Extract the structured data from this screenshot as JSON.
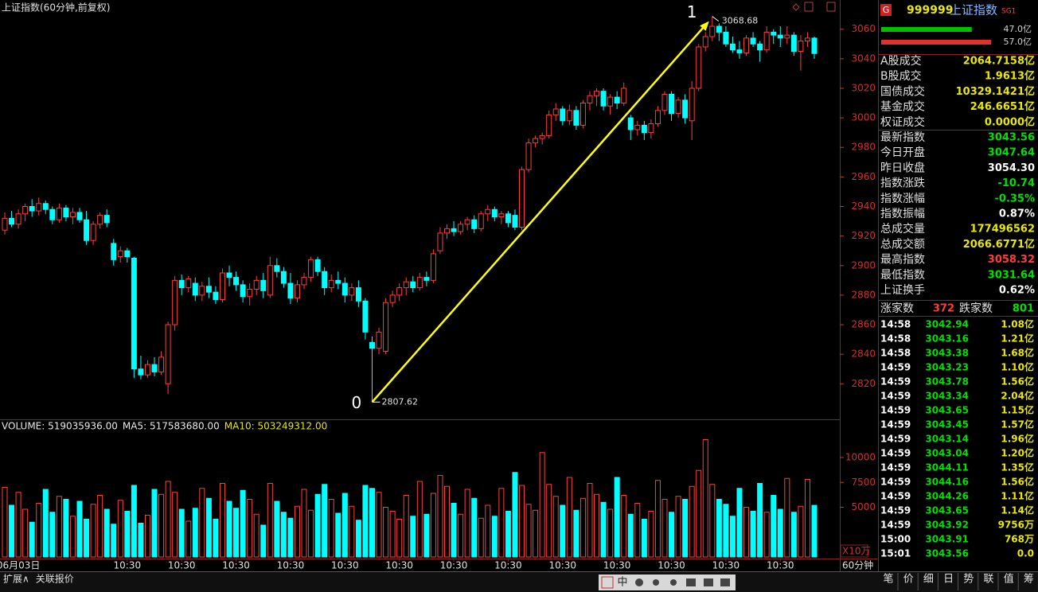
{
  "header": {
    "title": "上证指数(60分钟,前复权)"
  },
  "chart_data": [
    {
      "type": "candlestick",
      "up_color": "#ff3c3c",
      "down_color": "#00ffff",
      "ylim": [
        2797,
        3069
      ],
      "yticks": [
        2820,
        2840,
        2860,
        2880,
        2900,
        2920,
        2940,
        2960,
        2980,
        3000,
        3020,
        3040,
        3060
      ],
      "tick_color": "#d03030",
      "markers": {
        "low": 2807.62,
        "high": 3068.68
      },
      "wave_labels": [
        "0",
        "1"
      ],
      "wave_color": "#ffff00",
      "ohlc": [
        [
          2924,
          2936,
          2921,
          2932
        ],
        [
          2932,
          2937,
          2926,
          2928
        ],
        [
          2928,
          2938,
          2925,
          2935
        ],
        [
          2935,
          2942,
          2930,
          2940
        ],
        [
          2940,
          2945,
          2933,
          2937
        ],
        [
          2937,
          2946,
          2934,
          2942
        ],
        [
          2942,
          2944,
          2935,
          2938
        ],
        [
          2938,
          2940,
          2928,
          2931
        ],
        [
          2931,
          2942,
          2929,
          2939
        ],
        [
          2939,
          2941,
          2930,
          2933
        ],
        [
          2933,
          2939,
          2928,
          2936
        ],
        [
          2936,
          2939,
          2929,
          2931
        ],
        [
          2931,
          2937,
          2914,
          2917
        ],
        [
          2917,
          2930,
          2914,
          2928
        ],
        [
          2928,
          2936,
          2925,
          2934
        ],
        [
          2934,
          2938,
          2926,
          2929
        ],
        [
          2915,
          2918,
          2900,
          2904
        ],
        [
          2906,
          2913,
          2902,
          2910
        ],
        [
          2910,
          2912,
          2902,
          2906
        ],
        [
          2905,
          2906,
          2824,
          2830
        ],
        [
          2830,
          2839,
          2823,
          2826
        ],
        [
          2826,
          2836,
          2824,
          2833
        ],
        [
          2833,
          2838,
          2825,
          2828
        ],
        [
          2828,
          2842,
          2826,
          2838
        ],
        [
          2820,
          2862,
          2813,
          2860
        ],
        [
          2860,
          2893,
          2856,
          2890
        ],
        [
          2890,
          2894,
          2880,
          2885
        ],
        [
          2885,
          2893,
          2882,
          2891
        ],
        [
          2888,
          2892,
          2876,
          2880
        ],
        [
          2880,
          2889,
          2876,
          2886
        ],
        [
          2886,
          2892,
          2878,
          2882
        ],
        [
          2882,
          2886,
          2874,
          2877
        ],
        [
          2877,
          2898,
          2875,
          2895
        ],
        [
          2895,
          2900,
          2886,
          2892
        ],
        [
          2892,
          2896,
          2883,
          2887
        ],
        [
          2887,
          2890,
          2875,
          2879
        ],
        [
          2879,
          2888,
          2873,
          2884
        ],
        [
          2884,
          2893,
          2880,
          2890
        ],
        [
          2890,
          2895,
          2878,
          2883
        ],
        [
          2880,
          2906,
          2878,
          2900
        ],
        [
          2900,
          2905,
          2892,
          2896
        ],
        [
          2896,
          2899,
          2885,
          2888
        ],
        [
          2888,
          2895,
          2874,
          2878
        ],
        [
          2878,
          2890,
          2875,
          2887
        ],
        [
          2887,
          2895,
          2884,
          2892
        ],
        [
          2892,
          2906,
          2889,
          2904
        ],
        [
          2904,
          2906,
          2893,
          2896
        ],
        [
          2896,
          2899,
          2880,
          2885
        ],
        [
          2885,
          2894,
          2882,
          2890
        ],
        [
          2890,
          2896,
          2884,
          2888
        ],
        [
          2888,
          2892,
          2875,
          2880
        ],
        [
          2880,
          2888,
          2876,
          2885
        ],
        [
          2885,
          2890,
          2872,
          2876
        ],
        [
          2876,
          2878,
          2850,
          2855
        ],
        [
          2848,
          2852,
          2807.62,
          2844
        ],
        [
          2844,
          2858,
          2840,
          2855
        ],
        [
          2842,
          2878,
          2840,
          2875
        ],
        [
          2875,
          2883,
          2872,
          2880
        ],
        [
          2880,
          2888,
          2876,
          2885
        ],
        [
          2885,
          2892,
          2880,
          2889
        ],
        [
          2889,
          2893,
          2882,
          2885
        ],
        [
          2885,
          2895,
          2883,
          2892
        ],
        [
          2892,
          2896,
          2886,
          2890
        ],
        [
          2890,
          2911,
          2888,
          2908
        ],
        [
          2910,
          2926,
          2908,
          2922
        ],
        [
          2922,
          2928,
          2918,
          2925
        ],
        [
          2925,
          2930,
          2920,
          2923
        ],
        [
          2923,
          2930,
          2921,
          2928
        ],
        [
          2928,
          2933,
          2924,
          2931
        ],
        [
          2931,
          2934,
          2922,
          2925
        ],
        [
          2925,
          2937,
          2923,
          2935
        ],
        [
          2935,
          2941,
          2930,
          2938
        ],
        [
          2938,
          2940,
          2930,
          2933
        ],
        [
          2933,
          2937,
          2928,
          2935
        ],
        [
          2935,
          2937,
          2926,
          2929
        ],
        [
          2934,
          2938,
          2924,
          2926
        ],
        [
          2926,
          2967,
          2924,
          2965
        ],
        [
          2965,
          2986,
          2963,
          2983
        ],
        [
          2983,
          2988,
          2980,
          2986
        ],
        [
          2986,
          2990,
          2982,
          2988
        ],
        [
          2988,
          3005,
          2986,
          3002
        ],
        [
          3002,
          3010,
          2998,
          3006
        ],
        [
          3006,
          3008,
          2995,
          2998
        ],
        [
          2998,
          3009,
          2995,
          3005
        ],
        [
          3005,
          3008,
          2992,
          2995
        ],
        [
          2995,
          3012,
          2993,
          3010
        ],
        [
          3010,
          3018,
          3005,
          3015
        ],
        [
          3015,
          3020,
          3008,
          3018
        ],
        [
          3018,
          3020,
          3005,
          3008
        ],
        [
          3008,
          3016,
          3002,
          3014
        ],
        [
          3014,
          3018,
          3006,
          3010
        ],
        [
          3010,
          3024,
          3008,
          3020
        ],
        [
          3000,
          3002,
          2985,
          2992
        ],
        [
          2992,
          2998,
          2988,
          2995
        ],
        [
          2995,
          2998,
          2985,
          2990
        ],
        [
          2990,
          2999,
          2986,
          2996
        ],
        [
          2996,
          3008,
          2994,
          3005
        ],
        [
          3005,
          3018,
          3002,
          3016
        ],
        [
          3016,
          3018,
          2998,
          3003
        ],
        [
          3003,
          3014,
          3000,
          3012
        ],
        [
          3012,
          3016,
          2996,
          3000
        ],
        [
          2998,
          3025,
          2985,
          3020
        ],
        [
          3020,
          3050,
          3018,
          3048
        ],
        [
          3048,
          3058,
          3045,
          3055
        ],
        [
          3055,
          3068.68,
          3052,
          3062
        ],
        [
          3062,
          3064,
          3052,
          3058
        ],
        [
          3058,
          3062,
          3048,
          3050
        ],
        [
          3050,
          3055,
          3044,
          3046
        ],
        [
          3046,
          3052,
          3040,
          3044
        ],
        [
          3044,
          3056,
          3042,
          3054
        ],
        [
          3054,
          3058,
          3048,
          3050
        ],
        [
          3050,
          3052,
          3038,
          3046
        ],
        [
          3046,
          3062,
          3044,
          3058
        ],
        [
          3058,
          3060,
          3050,
          3056
        ],
        [
          3056,
          3062,
          3048,
          3054
        ],
        [
          3054,
          3062,
          3050,
          3056
        ],
        [
          3056,
          3058,
          3042,
          3045
        ],
        [
          3045,
          3056,
          3032,
          3052
        ],
        [
          3052,
          3058,
          3048,
          3054
        ],
        [
          3054,
          3055,
          3040,
          3043.56
        ]
      ]
    },
    {
      "type": "bar",
      "indicators": [
        {
          "label": "VOLUME: 519035936.00",
          "color": "#e8e8e8"
        },
        {
          "label": "MA5: 517583680.00",
          "color": "#e8e8e8"
        },
        {
          "label": "MA10: 503249312.00",
          "color": "#e8e800"
        }
      ],
      "unit": "X10万",
      "ylim": [
        0,
        12400
      ],
      "yticks": [
        5000,
        7500,
        10000
      ],
      "tick_color": "#d03030",
      "interval": "60分钟",
      "values": [
        7000,
        5200,
        6500,
        4800,
        3500,
        5400,
        6800,
        4500,
        6100,
        5800,
        4100,
        5600,
        3800,
        5300,
        6200,
        4800,
        3300,
        5700,
        4600,
        7200,
        3400,
        4200,
        6800,
        6300,
        7600,
        6500,
        4800,
        3600,
        4900,
        6900,
        5900,
        3800,
        7400,
        5600,
        4900,
        6700,
        5800,
        4300,
        3200,
        7400,
        5600,
        4500,
        3900,
        5100,
        6800,
        4700,
        6300,
        7300,
        5800,
        4400,
        6400,
        5100,
        3700,
        7200,
        6900,
        6500,
        5000,
        4600,
        3800,
        6200,
        4100,
        7600,
        4300,
        6400,
        8200,
        7100,
        5400,
        4300,
        6800,
        5900,
        3900,
        5200,
        4100,
        6900,
        4600,
        8500,
        7200,
        5300,
        4700,
        10500,
        7300,
        6100,
        5200,
        8000,
        4700,
        5900,
        7400,
        6300,
        5500,
        4800,
        8000,
        6200,
        4300,
        5400,
        3800,
        4600,
        7700,
        5800,
        4500,
        6100,
        5800,
        7100,
        8700,
        11800,
        7300,
        5800,
        5300,
        4100,
        6900,
        5000,
        4600,
        7400,
        4500,
        6200,
        4800,
        7900,
        4500,
        5100,
        7800,
        5190.36
      ],
      "categories": [
        null,
        null,
        "06月03日",
        null,
        null,
        null,
        null,
        null,
        null,
        null,
        null,
        null,
        null,
        null,
        null,
        null,
        null,
        null,
        "10:30",
        null,
        null,
        null,
        null,
        null,
        null,
        null,
        "10:30",
        null,
        null,
        null,
        null,
        null,
        null,
        null,
        "10:30",
        null,
        null,
        null,
        null,
        null,
        null,
        null,
        "10:30",
        null,
        null,
        null,
        null,
        null,
        null,
        null,
        "10:30",
        null,
        null,
        null,
        null,
        null,
        null,
        null,
        "10:30",
        null,
        null,
        null,
        null,
        null,
        null,
        null,
        "10:30",
        null,
        null,
        null,
        null,
        null,
        null,
        null,
        "10:30",
        null,
        null,
        null,
        null,
        null,
        null,
        null,
        "10:30",
        null,
        null,
        null,
        null,
        null,
        null,
        null,
        "10:30",
        null,
        null,
        null,
        null,
        null,
        null,
        null,
        "10:30",
        null,
        null,
        null,
        null,
        null,
        null,
        null,
        "10:30",
        null,
        null,
        null,
        null,
        null,
        null,
        null,
        "10:30",
        null,
        null,
        null,
        null,
        null
      ]
    }
  ],
  "panel": {
    "badge": "G",
    "code": "999999",
    "name": "上证指数",
    "tag": "SG1",
    "flow": [
      {
        "value": 47.0,
        "label": "47.0亿",
        "color": "#00c000"
      },
      {
        "value": 57.0,
        "label": "57.0亿",
        "color": "#e03030"
      }
    ],
    "rows": [
      {
        "label": "A股成交",
        "value": "2064.7158亿",
        "color": "#e8e800"
      },
      {
        "label": "B股成交",
        "value": "1.9613亿",
        "color": "#e8e800"
      },
      {
        "label": "国债成交",
        "value": "10329.1421亿",
        "color": "#e8e800"
      },
      {
        "label": "基金成交",
        "value": "246.6651亿",
        "color": "#e8e800"
      },
      {
        "label": "权证成交",
        "value": "0.0000亿",
        "color": "#e8e800"
      },
      {
        "label": "最新指数",
        "value": "3043.56",
        "color": "#00e000"
      },
      {
        "label": "今日开盘",
        "value": "3047.64",
        "color": "#00e000"
      },
      {
        "label": "昨日收盘",
        "value": "3054.30",
        "color": "#ffffff"
      },
      {
        "label": "指数涨跌",
        "value": "-10.74",
        "color": "#00e000"
      },
      {
        "label": "指数涨幅",
        "value": "-0.35%",
        "color": "#00e000"
      },
      {
        "label": "指数振幅",
        "value": "0.87%",
        "color": "#ffffff"
      },
      {
        "label": "总成交量",
        "value": "177496562",
        "color": "#e8e800"
      },
      {
        "label": "总成交额",
        "value": "2066.6771亿",
        "color": "#e8e800"
      },
      {
        "label": "最高指数",
        "value": "3058.32",
        "color": "#ff3c3c"
      },
      {
        "label": "最低指数",
        "value": "3031.64",
        "color": "#00e000"
      },
      {
        "label": "上证换手",
        "value": "0.62%",
        "color": "#ffffff"
      }
    ],
    "breadth": {
      "up_label": "涨家数",
      "up": "372",
      "down_label": "跌家数",
      "down": "801"
    },
    "trades": [
      [
        "14:58",
        "3042.94",
        "1.08亿"
      ],
      [
        "14:58",
        "3043.16",
        "1.21亿"
      ],
      [
        "14:58",
        "3043.38",
        "1.68亿"
      ],
      [
        "14:59",
        "3043.23",
        "1.10亿"
      ],
      [
        "14:59",
        "3043.78",
        "1.56亿"
      ],
      [
        "14:59",
        "3043.34",
        "2.04亿"
      ],
      [
        "14:59",
        "3043.65",
        "1.15亿"
      ],
      [
        "14:59",
        "3043.45",
        "1.57亿"
      ],
      [
        "14:59",
        "3043.14",
        "1.96亿"
      ],
      [
        "14:59",
        "3043.04",
        "1.20亿"
      ],
      [
        "14:59",
        "3044.11",
        "1.35亿"
      ],
      [
        "14:59",
        "3044.16",
        "1.56亿"
      ],
      [
        "14:59",
        "3044.26",
        "1.11亿"
      ],
      [
        "14:59",
        "3043.65",
        "1.14亿"
      ],
      [
        "14:59",
        "3043.92",
        "9756万"
      ],
      [
        "15:00",
        "3043.91",
        "768万"
      ],
      [
        "15:01",
        "3043.56",
        "0.0"
      ]
    ]
  },
  "footer": {
    "left": [
      "扩展∧",
      "关联报价"
    ],
    "toolbar": [
      "中"
    ],
    "tabs": [
      "笔",
      "价",
      "细",
      "日",
      "势",
      "联",
      "值",
      "筹"
    ]
  }
}
